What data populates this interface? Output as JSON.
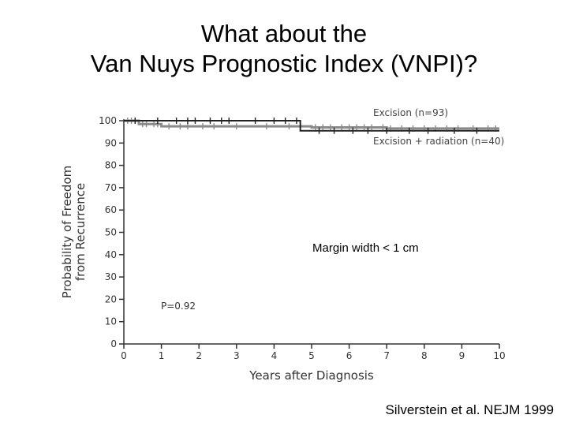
{
  "slide": {
    "title_line1": "What about the",
    "title_line2": "Van Nuys Prognostic Index (VNPI)?",
    "citation": "Silverstein et al. NEJM 1999"
  },
  "chart_data": {
    "type": "line",
    "title": "",
    "xlabel": "Years after Diagnosis",
    "ylabel_line1": "Probability of Freedom",
    "ylabel_line2": "from Recurrence",
    "xlim": [
      0,
      10
    ],
    "ylim": [
      0,
      100
    ],
    "xticks": [
      "0",
      "1",
      "2",
      "3",
      "4",
      "5",
      "6",
      "7",
      "8",
      "9",
      "10"
    ],
    "yticks": [
      "0",
      "10",
      "20",
      "30",
      "40",
      "50",
      "60",
      "70",
      "80",
      "90",
      "100"
    ],
    "annotation": "Margin width < 1 cm",
    "p_value": "P=0.92",
    "series": [
      {
        "name": "Excision (n=93)",
        "color": "#8a8a8a",
        "x": [
          0,
          0.4,
          0.4,
          1.0,
          1.0,
          5.0,
          5.0,
          7.0,
          7.0,
          10
        ],
        "y": [
          100,
          100,
          98.5,
          98.5,
          97.5,
          97.5,
          97,
          97,
          96.5,
          96.5
        ],
        "censor_x": [
          0.1,
          0.2,
          0.3,
          0.5,
          0.6,
          0.8,
          0.9,
          1.2,
          1.5,
          1.7,
          2.1,
          2.4,
          3.0,
          3.8,
          4.4,
          5.1,
          5.3,
          5.5,
          5.8,
          6.0,
          6.2,
          6.4,
          6.6,
          6.9,
          7.1,
          7.4,
          7.7,
          8.0,
          8.3,
          8.6,
          8.9,
          9.3,
          9.7,
          9.9
        ]
      },
      {
        "name": "Excision + radiation (n=40)",
        "color": "#222222",
        "x": [
          0,
          4.7,
          4.7,
          10
        ],
        "y": [
          100,
          100,
          95.5,
          95.5
        ],
        "censor_x": [
          0.3,
          0.9,
          1.4,
          1.7,
          1.9,
          2.3,
          2.6,
          2.8,
          3.5,
          4.0,
          4.3,
          4.6,
          5.2,
          5.6,
          6.1,
          6.5,
          7.0,
          7.6,
          8.1,
          8.8,
          9.4
        ]
      }
    ]
  }
}
